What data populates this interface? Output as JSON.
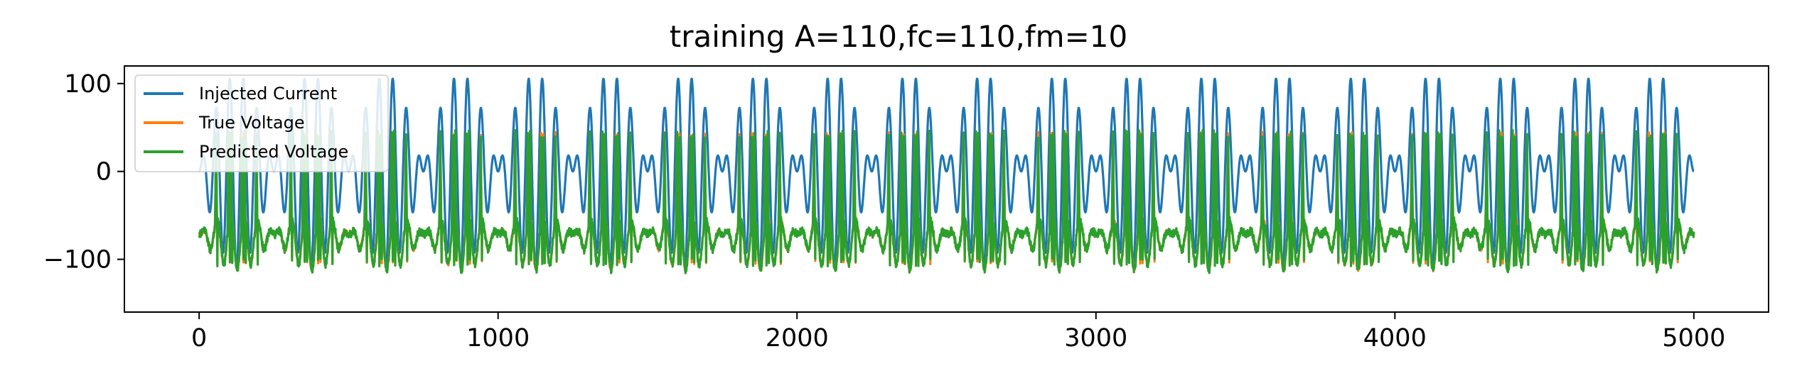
{
  "chart_data": {
    "type": "line",
    "title": "training A=110,fc=110,fm=10",
    "xlabel": "",
    "ylabel": "",
    "xlim": [
      -250,
      5250
    ],
    "ylim": [
      -160,
      120
    ],
    "xticks": [
      0,
      1000,
      2000,
      3000,
      4000,
      5000
    ],
    "xtick_labels": [
      "0",
      "1000",
      "2000",
      "3000",
      "4000",
      "5000"
    ],
    "yticks": [
      -100,
      0,
      100
    ],
    "ytick_labels": [
      "−100",
      "0",
      "100"
    ],
    "grid": false,
    "legend_position": "upper-left",
    "x": [
      0,
      5000
    ],
    "series": [
      {
        "name": "Injected Current",
        "color": "#1f77b4",
        "signal": "A*sin(2*pi*fc*t)*sin(2*pi*fm*t)",
        "A": 110,
        "fc": 110,
        "fm": 10,
        "y_range": [
          -110,
          110
        ]
      },
      {
        "name": "True Voltage",
        "color": "#ff7f0e",
        "resting": -70,
        "y_range": [
          -145,
          55
        ]
      },
      {
        "name": "Predicted Voltage",
        "color": "#2ca02c",
        "resting": -70,
        "y_range": [
          -145,
          55
        ]
      }
    ]
  }
}
